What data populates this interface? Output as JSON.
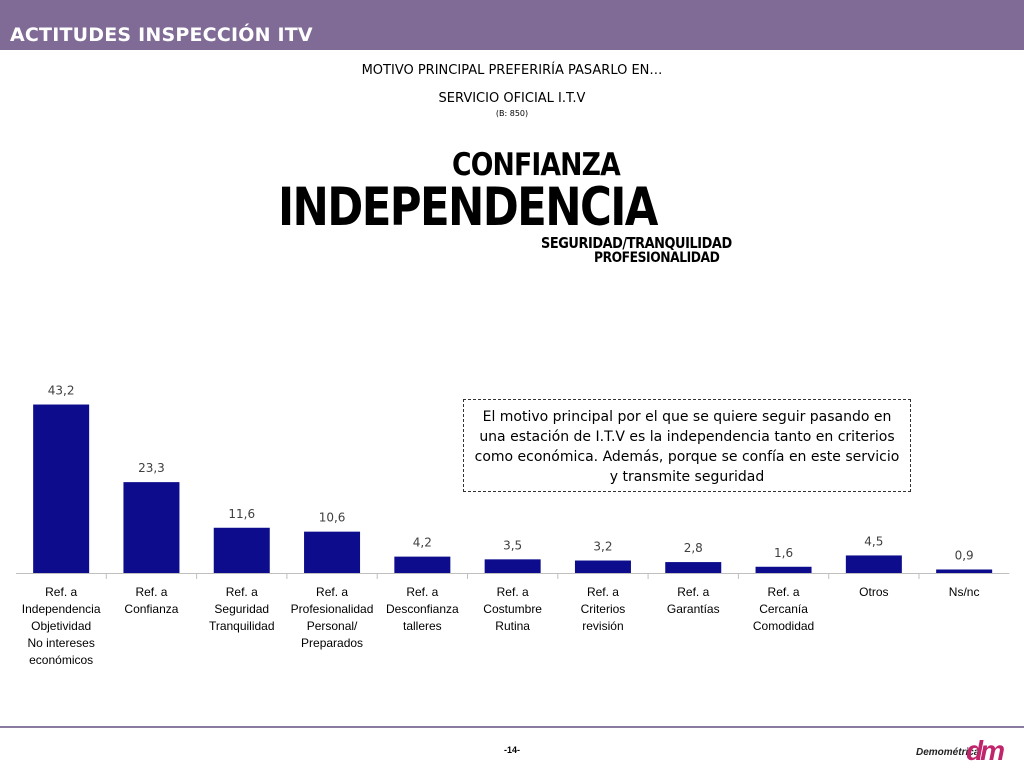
{
  "header": {
    "title": "ACTITUDES INSPECCIÓN ITV",
    "color": "#7f6b95"
  },
  "subtitles": {
    "line1": "MOTIVO PRINCIPAL PREFERIRÍA PASARLO EN…",
    "line2": "SERVICIO OFICIAL I.T.V",
    "base": "(B: 850)"
  },
  "word_cloud": {
    "confianza": "CONFIANZA",
    "independencia": "INDEPENDENCIA",
    "seguridad": "SEGURIDAD/TRANQUILIDAD",
    "profesionalidad": "PROFESIONALIDAD"
  },
  "chart_data": {
    "type": "bar",
    "bar_color": "#0c0c8c",
    "categories": [
      [
        "Ref. a",
        "Independencia",
        "Objetividad",
        "No intereses",
        "económicos"
      ],
      [
        "Ref. a",
        "Confianza"
      ],
      [
        "Ref. a",
        "Seguridad",
        "Tranquilidad"
      ],
      [
        "Ref. a",
        "Profesionalidad",
        "Personal/",
        "Preparados"
      ],
      [
        "Ref. a",
        "Desconfianza",
        "talleres"
      ],
      [
        "Ref. a",
        "Costumbre",
        "Rutina"
      ],
      [
        "Ref. a",
        "Criterios",
        "revisión"
      ],
      [
        "Ref. a",
        "Garantías"
      ],
      [
        "Ref. a",
        "Cercanía",
        "Comodidad"
      ],
      [
        "Otros"
      ],
      [
        "Ns/nc"
      ]
    ],
    "values": [
      43.2,
      23.3,
      11.6,
      10.6,
      4.2,
      3.5,
      3.2,
      2.8,
      1.6,
      4.5,
      0.9
    ],
    "value_labels": [
      "43,2",
      "23,3",
      "11,6",
      "10,6",
      "4,2",
      "3,5",
      "3,2",
      "2,8",
      "1,6",
      "4,5",
      "0,9"
    ],
    "ylim": [
      0,
      50
    ]
  },
  "callout": {
    "text": "El motivo principal por el que se quiere seguir pasando en una estación de I.T.V es la independencia tanto en criterios como económica. Además, porque se confía en este servicio y transmite seguridad"
  },
  "footer": {
    "page": "-14-",
    "logo_text": "Demométrica",
    "logo_mark": "dm"
  }
}
